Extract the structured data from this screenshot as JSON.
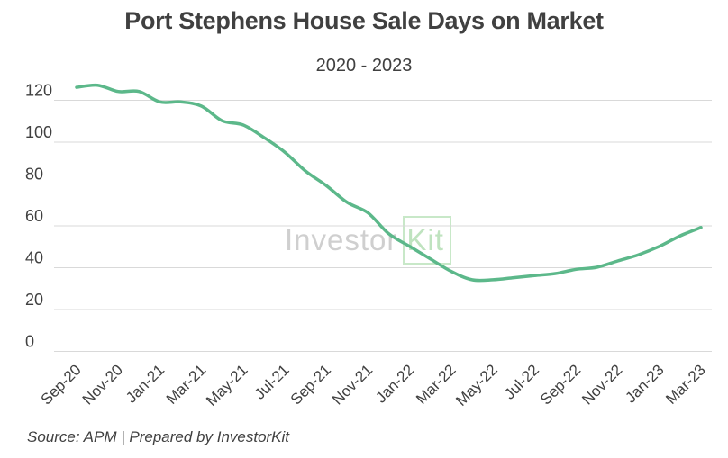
{
  "title": "Port Stephens House Sale Days on Market",
  "subtitle": "2020 - 2023",
  "source": "Source: APM | Prepared by InvestorKit",
  "watermark": {
    "left": "Investor",
    "right": "Kit"
  },
  "colors": {
    "line": "#5cb88a",
    "grid": "#d9d9d9",
    "text": "#404040"
  },
  "chart_data": {
    "type": "line",
    "title": "Port Stephens House Sale Days on Market",
    "subtitle": "2020 - 2023",
    "xlabel": "",
    "ylabel": "",
    "ylim": [
      0,
      120
    ],
    "yticks": [
      0,
      20,
      40,
      60,
      80,
      100,
      120
    ],
    "grid": true,
    "legend": "none",
    "categories": [
      "Sep-20",
      "Oct-20",
      "Nov-20",
      "Dec-20",
      "Jan-21",
      "Feb-21",
      "Mar-21",
      "Apr-21",
      "May-21",
      "Jun-21",
      "Jul-21",
      "Aug-21",
      "Sep-21",
      "Oct-21",
      "Nov-21",
      "Dec-21",
      "Jan-22",
      "Feb-22",
      "Mar-22",
      "Apr-22",
      "May-22",
      "Jun-22",
      "Jul-22",
      "Aug-22",
      "Sep-22",
      "Oct-22",
      "Nov-22",
      "Dec-22",
      "Jan-23",
      "Feb-23",
      "Mar-23"
    ],
    "xtick_labels": [
      "Sep-20",
      "Nov-20",
      "Jan-21",
      "Mar-21",
      "May-21",
      "Jul-21",
      "Sep-21",
      "Nov-21",
      "Jan-22",
      "Mar-22",
      "May-22",
      "Jul-22",
      "Sep-22",
      "Nov-22",
      "Jan-23",
      "Mar-23"
    ],
    "series": [
      {
        "values": [
          126,
          127,
          124,
          124,
          119,
          119,
          117,
          110,
          108,
          102,
          95,
          86,
          79,
          71,
          66,
          56,
          50,
          44,
          38,
          34,
          34,
          35,
          36,
          37,
          39,
          40,
          43,
          46,
          50,
          55,
          59
        ]
      }
    ]
  }
}
